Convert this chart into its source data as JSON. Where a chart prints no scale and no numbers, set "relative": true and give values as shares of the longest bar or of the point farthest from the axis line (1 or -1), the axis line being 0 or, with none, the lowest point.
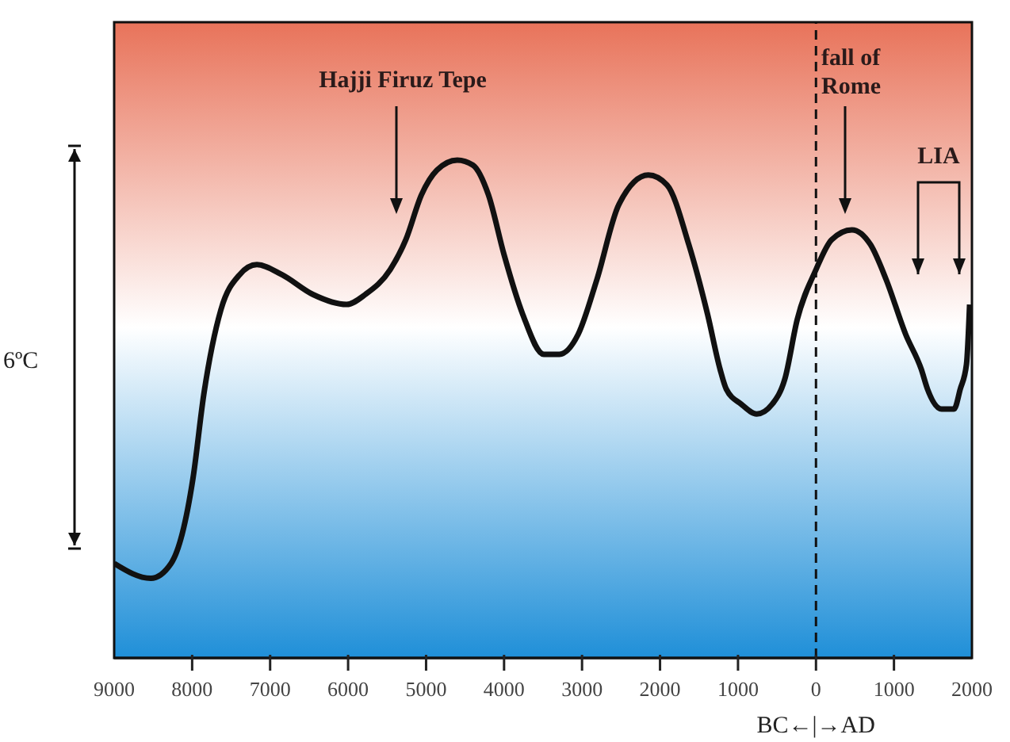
{
  "chart_data": {
    "type": "line",
    "relative": true,
    "x": [
      -9000,
      -8530,
      -8270,
      -7990,
      -7850,
      -7630,
      -7390,
      -7170,
      -6850,
      -6450,
      -6020,
      -5780,
      -5460,
      -5260,
      -5060,
      -4860,
      -4600,
      -4400,
      -4200,
      -4000,
      -3760,
      -3490,
      -3290,
      -3050,
      -2810,
      -2530,
      -2150,
      -1910,
      -1630,
      -1390,
      -1230,
      -1150,
      -960,
      -760,
      -560,
      -400,
      -240,
      0,
      200,
      460,
      700,
      900,
      1150,
      1350,
      1430,
      1610,
      1770,
      1850,
      1930,
      1970
    ],
    "series": [
      {
        "color": "#111111",
        "values": [
          0.19,
          0.16,
          0.19,
          0.36,
          0.53,
          0.7,
          0.77,
          0.79,
          0.77,
          0.73,
          0.71,
          0.73,
          0.78,
          0.84,
          0.93,
          0.98,
          1.0,
          0.99,
          0.93,
          0.81,
          0.69,
          0.61,
          0.61,
          0.65,
          0.76,
          0.91,
          0.97,
          0.95,
          0.83,
          0.69,
          0.58,
          0.54,
          0.51,
          0.49,
          0.51,
          0.56,
          0.68,
          0.78,
          0.84,
          0.86,
          0.83,
          0.76,
          0.65,
          0.58,
          0.54,
          0.5,
          0.5,
          0.54,
          0.59,
          0.71
        ]
      }
    ],
    "xlim": [
      -9000,
      2000
    ],
    "xticks": [
      {
        "value": -9000,
        "label": "9000"
      },
      {
        "value": -8000,
        "label": "8000"
      },
      {
        "value": -7000,
        "label": "7000"
      },
      {
        "value": -6000,
        "label": "6000"
      },
      {
        "value": -5000,
        "label": "5000"
      },
      {
        "value": -4000,
        "label": "4000"
      },
      {
        "value": -3000,
        "label": "3000"
      },
      {
        "value": -2000,
        "label": "2000"
      },
      {
        "value": -1000,
        "label": "1000"
      },
      0,
      1000,
      2000
    ],
    "ref_lines": [
      {
        "axis": "x",
        "value": 0,
        "color": "#111111",
        "line_style": "dashed"
      }
    ],
    "annotations": [
      "Hajji Firuz Tepe",
      "fall of\nRome",
      "LIA",
      "6ºC",
      "BC←|→AD"
    ],
    "marker": "none",
    "line_style": "solid"
  }
}
